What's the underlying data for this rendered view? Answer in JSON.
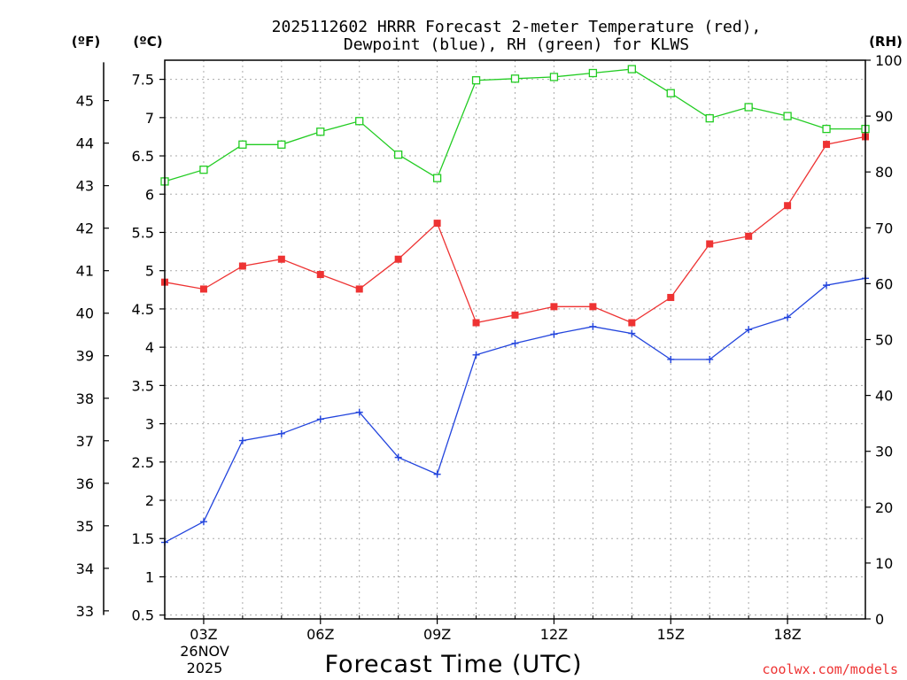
{
  "chart_data": {
    "type": "line",
    "title_line1": "2025112602 HRRR Forecast 2-meter Temperature (red),",
    "title_line2": "Dewpoint (blue), RH (green) for KLWS",
    "xlabel": "Forecast Time (UTC)",
    "credit": "coolwx.com/models",
    "credit_color": "#ee3333",
    "axes": {
      "celsius": {
        "unit": "(ºC)",
        "range": [
          0.45,
          7.75
        ],
        "ticks": [
          "0.5",
          "1",
          "1.5",
          "2",
          "2.5",
          "3",
          "3.5",
          "4",
          "4.5",
          "5",
          "5.5",
          "6",
          "6.5",
          "7",
          "7.5"
        ]
      },
      "fahrenheit": {
        "unit": "(ºF)",
        "ticks": [
          "33",
          "34",
          "35",
          "36",
          "37",
          "38",
          "39",
          "40",
          "41",
          "42",
          "43",
          "44",
          "45"
        ]
      },
      "rh": {
        "unit": "(RH)",
        "range": [
          0,
          100
        ],
        "ticks": [
          "0",
          "10",
          "20",
          "30",
          "40",
          "50",
          "60",
          "70",
          "80",
          "90",
          "100"
        ]
      }
    },
    "x_range": [
      2,
      20
    ],
    "x_ticks": [
      {
        "hour": 3,
        "label": "03Z"
      },
      {
        "hour": 6,
        "label": "06Z"
      },
      {
        "hour": 9,
        "label": "09Z"
      },
      {
        "hour": 12,
        "label": "12Z"
      },
      {
        "hour": 15,
        "label": "15Z"
      },
      {
        "hour": 18,
        "label": "18Z"
      }
    ],
    "date_label_1": "26NOV",
    "date_label_2": "2025",
    "x": [
      2,
      3,
      4,
      5,
      6,
      7,
      8,
      9,
      10,
      11,
      12,
      13,
      14,
      15,
      16,
      17,
      18,
      19,
      20
    ],
    "series": [
      {
        "name": "Temperature",
        "axis": "celsius",
        "color": "#ee3333",
        "marker": "filled-square",
        "values": [
          4.85,
          4.76,
          5.06,
          5.15,
          4.95,
          4.76,
          5.15,
          5.62,
          4.32,
          4.42,
          4.53,
          4.53,
          4.32,
          4.65,
          5.35,
          5.45,
          5.85,
          6.65,
          6.75
        ]
      },
      {
        "name": "Dewpoint",
        "axis": "celsius",
        "color": "#2244dd",
        "marker": "plus",
        "values": [
          1.45,
          1.72,
          2.78,
          2.87,
          3.06,
          3.15,
          2.56,
          2.34,
          3.9,
          4.05,
          4.17,
          4.27,
          4.18,
          3.84,
          3.84,
          4.23,
          4.39,
          4.81,
          4.9
        ]
      },
      {
        "name": "RH",
        "axis": "rh",
        "color": "#22cc22",
        "marker": "open-square",
        "values": [
          78.3,
          80.4,
          84.9,
          84.9,
          87.2,
          89.1,
          83.1,
          78.9,
          96.4,
          96.7,
          97.0,
          97.7,
          98.4,
          94.1,
          89.6,
          91.6,
          90.0,
          87.7,
          87.7
        ]
      }
    ]
  }
}
